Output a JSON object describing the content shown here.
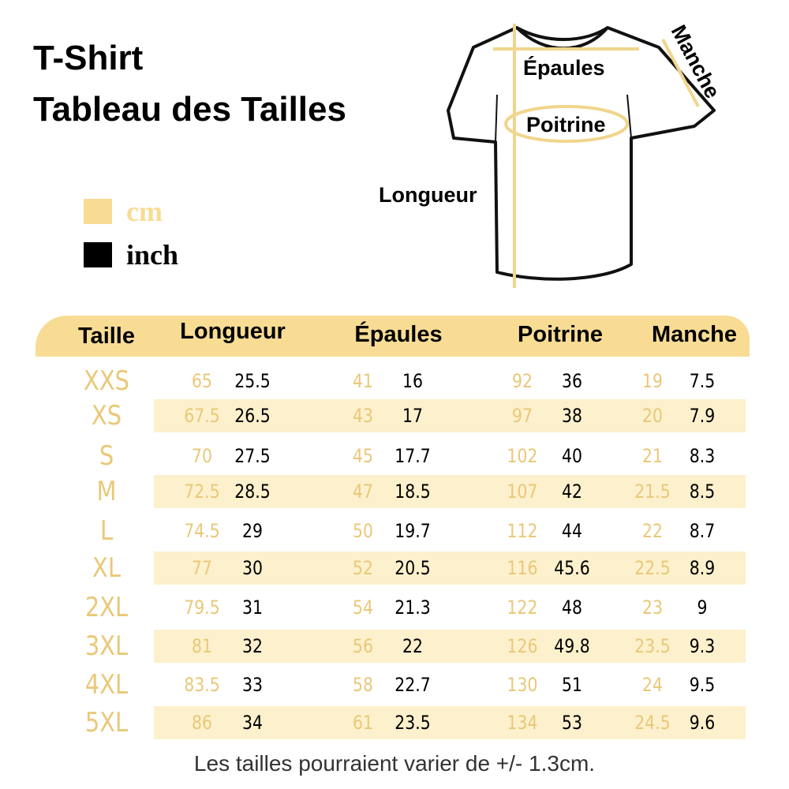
{
  "title": {
    "line1": "T-Shirt",
    "line2": "Tableau des Tailles"
  },
  "legend": [
    {
      "label": "cm",
      "color": "#f8dc94"
    },
    {
      "label": "inch",
      "color": "#000000"
    }
  ],
  "diagram": {
    "epaules": "Épaules",
    "poitrine": "Poitrine",
    "manche": "Manche",
    "longueur": "Longueur"
  },
  "colors": {
    "header": "#f8dc94",
    "stripe": "#fdf0cc",
    "cm_text": "#e9c878",
    "inch_text": "#000000"
  },
  "table": {
    "headers": [
      "Taille",
      "Longueur",
      "Épaules",
      "Poitrine",
      "Manche"
    ],
    "rows": [
      {
        "size": "XXS",
        "values": [
          [
            "65",
            "25.5"
          ],
          [
            "41",
            "16"
          ],
          [
            "92",
            "36"
          ],
          [
            "19",
            "7.5"
          ]
        ]
      },
      {
        "size": "XS",
        "values": [
          [
            "67.5",
            "26.5"
          ],
          [
            "43",
            "17"
          ],
          [
            "97",
            "38"
          ],
          [
            "20",
            "7.9"
          ]
        ]
      },
      {
        "size": "S",
        "values": [
          [
            "70",
            "27.5"
          ],
          [
            "45",
            "17.7"
          ],
          [
            "102",
            "40"
          ],
          [
            "21",
            "8.3"
          ]
        ]
      },
      {
        "size": "M",
        "values": [
          [
            "72.5",
            "28.5"
          ],
          [
            "47",
            "18.5"
          ],
          [
            "107",
            "42"
          ],
          [
            "21.5",
            "8.5"
          ]
        ]
      },
      {
        "size": "L",
        "values": [
          [
            "74.5",
            "29"
          ],
          [
            "50",
            "19.7"
          ],
          [
            "112",
            "44"
          ],
          [
            "22",
            "8.7"
          ]
        ]
      },
      {
        "size": "XL",
        "values": [
          [
            "77",
            "30"
          ],
          [
            "52",
            "20.5"
          ],
          [
            "116",
            "45.6"
          ],
          [
            "22.5",
            "8.9"
          ]
        ]
      },
      {
        "size": "2XL",
        "values": [
          [
            "79.5",
            "31"
          ],
          [
            "54",
            "21.3"
          ],
          [
            "122",
            "48"
          ],
          [
            "23",
            "9"
          ]
        ]
      },
      {
        "size": "3XL",
        "values": [
          [
            "81",
            "32"
          ],
          [
            "56",
            "22"
          ],
          [
            "126",
            "49.8"
          ],
          [
            "23.5",
            "9.3"
          ]
        ]
      },
      {
        "size": "4XL",
        "values": [
          [
            "83.5",
            "33"
          ],
          [
            "58",
            "22.7"
          ],
          [
            "130",
            "51"
          ],
          [
            "24",
            "9.5"
          ]
        ]
      },
      {
        "size": "5XL",
        "values": [
          [
            "86",
            "34"
          ],
          [
            "61",
            "23.5"
          ],
          [
            "134",
            "53"
          ],
          [
            "24.5",
            "9.6"
          ]
        ]
      }
    ]
  },
  "note": "Les tailles pourraient varier de +/- 1.3cm."
}
